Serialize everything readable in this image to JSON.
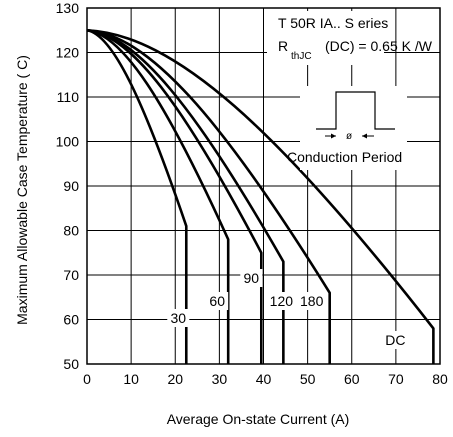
{
  "chart_data": {
    "type": "line",
    "xlabel": "Average On-state Current (A)",
    "ylabel": "Maximum Allowable Case Temperature ( C)",
    "xlim": [
      0,
      80
    ],
    "ylim": [
      50,
      130
    ],
    "x_ticks": [
      "0",
      "10",
      "20",
      "30",
      "40",
      "50",
      "60",
      "70",
      "80"
    ],
    "y_ticks": [
      "50",
      "60",
      "70",
      "80",
      "90",
      "100",
      "110",
      "120",
      "130"
    ],
    "grid": true,
    "annotations": {
      "series_title": "T 50R IA.. S eries",
      "rth_prefix": "R",
      "rth_subscript": "thJC",
      "rth_value": "(DC) = 0.65 K /W",
      "phi_symbol": "ø",
      "conduction_label": "Conduction Period"
    },
    "series": [
      {
        "name": "30",
        "x": [
          0,
          22.5,
          22.5
        ],
        "y": [
          125,
          81,
          50
        ]
      },
      {
        "name": "60",
        "x": [
          0,
          32,
          32
        ],
        "y": [
          125,
          78,
          50
        ]
      },
      {
        "name": "90",
        "x": [
          0,
          39.5,
          39.5
        ],
        "y": [
          125,
          75,
          50
        ]
      },
      {
        "name": "120",
        "x": [
          0,
          44.5,
          44.5
        ],
        "y": [
          125,
          73,
          50
        ]
      },
      {
        "name": "180",
        "x": [
          0,
          55,
          55
        ],
        "y": [
          125,
          66,
          50
        ]
      },
      {
        "name": "DC",
        "x": [
          0,
          78.5,
          78.5
        ],
        "y": [
          125,
          58,
          50
        ]
      }
    ]
  }
}
